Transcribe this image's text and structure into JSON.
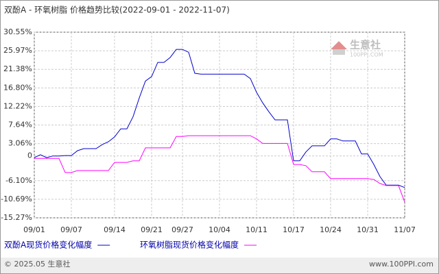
{
  "chart_data": {
    "type": "line",
    "title": "双酚A - 环氧树脂 价格趋势比较(2022-09-01 - 2022-11-07)",
    "categories": [
      "09/01",
      null,
      null,
      null,
      null,
      null,
      "09/07",
      null,
      null,
      null,
      null,
      null,
      null,
      "09/14",
      null,
      null,
      null,
      null,
      null,
      "09/21",
      null,
      null,
      null,
      null,
      "09/27",
      null,
      null,
      null,
      null,
      null,
      "10/04",
      null,
      null,
      null,
      null,
      null,
      "10/11",
      null,
      null,
      null,
      null,
      null,
      "10/17",
      null,
      null,
      null,
      null,
      null,
      "10/24",
      null,
      null,
      null,
      null,
      null,
      "10/31",
      null,
      null,
      null,
      null,
      null,
      "11/07"
    ],
    "series": [
      {
        "name": "双酚A现货价格变化幅度",
        "color": "#0000cc",
        "values": [
          -0.4,
          0.3,
          -0.4,
          0,
          0,
          0.1,
          0.1,
          1.3,
          1.8,
          1.8,
          1.8,
          2.8,
          3.5,
          4.7,
          6.7,
          6.7,
          9.7,
          14.3,
          18.5,
          19.6,
          23.1,
          23.1,
          24.3,
          26.3,
          26.3,
          25.6,
          20.4,
          20.2,
          20.2,
          20.2,
          20.2,
          20.2,
          20.2,
          20.2,
          20.2,
          19.1,
          15.7,
          13.1,
          10.9,
          8.9,
          8.9,
          8.9,
          -1.2,
          -1.2,
          1.0,
          2.5,
          2.5,
          2.5,
          4.2,
          4.2,
          3.7,
          3.7,
          3.7,
          0.5,
          0.5,
          -2.1,
          -5.1,
          -7.2,
          -7.2,
          -7.2,
          -7.8
        ]
      },
      {
        "name": "环氧树脂现货价格变化幅度",
        "color": "#ff00ff",
        "values": [
          -0.6,
          -0.6,
          -0.6,
          -0.6,
          -0.6,
          -4.1,
          -4.1,
          -3.6,
          -3.6,
          -3.6,
          -3.6,
          -3.6,
          -3.6,
          -1.6,
          -1.6,
          -1.6,
          -1.2,
          -1.2,
          2.0,
          2.0,
          2.0,
          2.0,
          2.0,
          4.8,
          4.8,
          5.0,
          5.0,
          5.0,
          5.0,
          5.0,
          5.0,
          5.0,
          5.0,
          5.0,
          5.0,
          5.0,
          4.2,
          3.1,
          3.1,
          3.1,
          3.1,
          3.1,
          -2.1,
          -2.1,
          -2.4,
          -3.9,
          -3.9,
          -3.9,
          -5.6,
          -5.6,
          -5.6,
          -5.6,
          -5.6,
          -5.6,
          -5.6,
          -5.8,
          -6.8,
          -7.3,
          -7.3,
          -7.3,
          -11.4
        ]
      }
    ],
    "ylim": [
      -15.27,
      30.55
    ],
    "yticks": [
      {
        "value": 30.55,
        "label": "30.55%"
      },
      {
        "value": 25.97,
        "label": "25.97%"
      },
      {
        "value": 21.38,
        "label": "21.38%"
      },
      {
        "value": 16.8,
        "label": "16.80%"
      },
      {
        "value": 12.22,
        "label": "12.22%"
      },
      {
        "value": 7.64,
        "label": "7.64%"
      },
      {
        "value": 3.06,
        "label": "3.06%"
      },
      0,
      {
        "value": -6.1,
        "label": "-6.10%"
      },
      {
        "value": -10.69,
        "label": "-10.69%"
      },
      {
        "value": -15.27,
        "label": "-15.27%"
      }
    ],
    "grid": true
  },
  "watermark": {
    "name": "生意社",
    "url": "100PPI.COM"
  },
  "footer": {
    "copyright": "© 2025.05 生意社",
    "site": "www.100PPI.com"
  }
}
